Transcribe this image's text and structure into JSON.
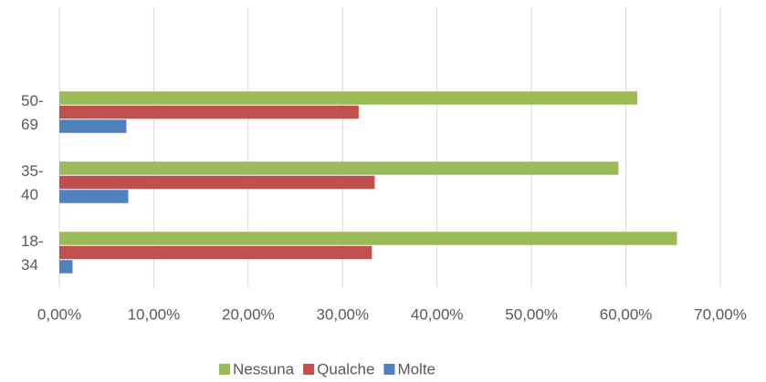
{
  "chart_data": {
    "type": "barh",
    "categories": [
      "18-34",
      "35-40",
      "50-69"
    ],
    "series": [
      {
        "name": "Nessuna",
        "color": "#9bbb59",
        "values": [
          65.4,
          59.2,
          61.2
        ]
      },
      {
        "name": "Qualche",
        "color": "#c0504d",
        "values": [
          33.1,
          33.4,
          31.7
        ]
      },
      {
        "name": "Molte",
        "color": "#4f81bd",
        "values": [
          1.4,
          7.3,
          7.1
        ]
      }
    ],
    "xlim": [
      0,
      70
    ],
    "xticks": [
      {
        "value": 0,
        "label": "0,00%"
      },
      {
        "value": 10,
        "label": "10,00%"
      },
      {
        "value": 20,
        "label": "20,00%"
      },
      {
        "value": 30,
        "label": "30,00%"
      },
      {
        "value": 40,
        "label": "40,00%"
      },
      {
        "value": 50,
        "label": "50,00%"
      },
      {
        "value": 60,
        "label": "60,00%"
      },
      {
        "value": 70,
        "label": "70,00%"
      }
    ],
    "grid": true,
    "legend": "bottom"
  }
}
